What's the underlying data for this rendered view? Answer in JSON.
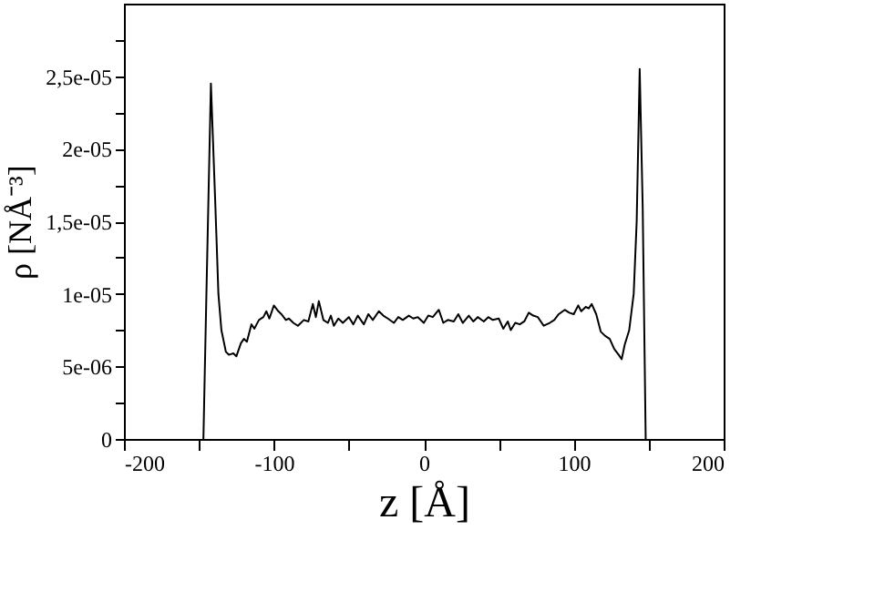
{
  "chart_data": {
    "type": "line",
    "xlabel": "z [Å]",
    "ylabel": "ρ [NÅ⁻³]",
    "xlim": [
      -200,
      200
    ],
    "xticks": [
      -200,
      {
        "value": -150,
        "label": null
      },
      -100,
      {
        "value": -50,
        "label": null
      },
      0,
      {
        "value": 50,
        "label": null
      },
      100,
      {
        "value": 150,
        "label": null
      },
      200
    ],
    "ylim": [
      0,
      3e-05
    ],
    "yticks": [
      0,
      {
        "value": 2.5e-06,
        "label": null
      },
      {
        "value": 5e-06,
        "label": "5e-06"
      },
      {
        "value": 7.5e-06,
        "label": null
      },
      {
        "value": 1e-05,
        "label": "1e-05"
      },
      {
        "value": 1.25e-05,
        "label": null
      },
      {
        "value": 1.5e-05,
        "label": "1,5e-05"
      },
      {
        "value": 1.75e-05,
        "label": null
      },
      {
        "value": 2e-05,
        "label": "2e-05"
      },
      {
        "value": 2.25e-05,
        "label": null
      },
      {
        "value": 2.5e-05,
        "label": "2,5e-05"
      },
      {
        "value": 2.75e-05,
        "label": null
      }
    ],
    "grid": false,
    "marker": "none",
    "line_style": "solid",
    "series": [
      {
        "color": "#000000",
        "x": [
          -147,
          -145,
          -142,
          -139,
          -137,
          -135,
          -132,
          -130,
          -127,
          -125,
          -122,
          -120,
          -118,
          -115,
          -113,
          -110,
          -107,
          -105,
          -103,
          -100,
          -97,
          -95,
          -92,
          -90,
          -87,
          -84,
          -80,
          -77,
          -74,
          -72,
          -70,
          -67,
          -64,
          -62,
          -60,
          -57,
          -54,
          -50,
          -47,
          -44,
          -40,
          -37,
          -34,
          -30,
          -27,
          -24,
          -20,
          -17,
          -14,
          -10,
          -7,
          -4,
          0,
          3,
          6,
          10,
          13,
          16,
          20,
          23,
          26,
          30,
          33,
          36,
          40,
          43,
          46,
          50,
          53,
          56,
          58,
          61,
          64,
          67,
          70,
          73,
          76,
          80,
          84,
          87,
          90,
          94,
          97,
          100,
          103,
          105,
          108,
          110,
          112,
          115,
          118,
          121,
          124,
          127,
          130,
          132,
          134,
          137,
          140,
          142,
          144,
          146,
          148
        ],
        "values": [
          0,
          1e-05,
          2.45e-05,
          1.6e-05,
          1e-05,
          7.5e-06,
          6e-06,
          5.8e-06,
          5.9e-06,
          5.7e-06,
          6.6e-06,
          6.9e-06,
          6.7e-06,
          7.9e-06,
          7.6e-06,
          8.2e-06,
          8.4e-06,
          8.8e-06,
          8.3e-06,
          9.2e-06,
          8.8e-06,
          8.6e-06,
          8.2e-06,
          8.3e-06,
          8e-06,
          7.8e-06,
          8.2e-06,
          8.1e-06,
          9.3e-06,
          8.4e-06,
          9.5e-06,
          8.2e-06,
          8e-06,
          8.5e-06,
          7.8e-06,
          8.3e-06,
          8e-06,
          8.4e-06,
          7.9e-06,
          8.5e-06,
          7.9e-06,
          8.6e-06,
          8.2e-06,
          8.8e-06,
          8.5e-06,
          8.3e-06,
          8e-06,
          8.4e-06,
          8.2e-06,
          8.5e-06,
          8.3e-06,
          8.4e-06,
          8e-06,
          8.5e-06,
          8.4e-06,
          8.9e-06,
          8e-06,
          8.2e-06,
          8.1e-06,
          8.6e-06,
          8e-06,
          8.5e-06,
          8.1e-06,
          8.4e-06,
          8.1e-06,
          8.4e-06,
          8.2e-06,
          8.3e-06,
          7.6e-06,
          8.1e-06,
          7.5e-06,
          8e-06,
          7.9e-06,
          8.1e-06,
          8.7e-06,
          8.5e-06,
          8.4e-06,
          7.8e-06,
          8e-06,
          8.2e-06,
          8.6e-06,
          8.9e-06,
          8.7e-06,
          8.6e-06,
          9.2e-06,
          8.8e-06,
          9.1e-06,
          9e-06,
          9.3e-06,
          8.6e-06,
          7.4e-06,
          7.1e-06,
          6.9e-06,
          6.2e-06,
          5.8e-06,
          5.5e-06,
          6.5e-06,
          7.5e-06,
          1e-05,
          1.5e-05,
          2.55e-05,
          1.6e-05,
          0
        ]
      }
    ]
  }
}
